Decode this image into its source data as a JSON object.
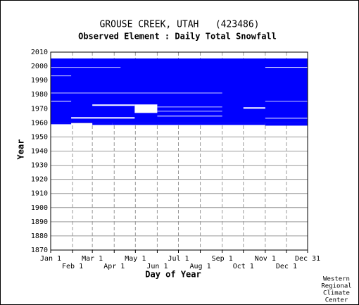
{
  "chart_data": {
    "type": "availability",
    "title": "GROUSE CREEK, UTAH   (423486)",
    "subtitle": "Observed Element : Daily Total Snowfall",
    "x_label": "Day of Year",
    "y_label": "Year",
    "credit": [
      "Western",
      "Regional",
      "Climate",
      "Center"
    ],
    "color": "#0000ff",
    "gap_color": "#ffffff",
    "xlim": [
      1,
      365
    ],
    "ylim": [
      1870,
      2010
    ],
    "xticks": [
      {
        "value": 1,
        "label": "Jan 1"
      },
      {
        "value": 32,
        "label": "Feb 1"
      },
      {
        "value": 60,
        "label": "Mar 1"
      },
      {
        "value": 91,
        "label": "Apr 1"
      },
      {
        "value": 121,
        "label": "May 1"
      },
      {
        "value": 152,
        "label": "Jun 1"
      },
      {
        "value": 182,
        "label": "Jul 1"
      },
      {
        "value": 213,
        "label": "Aug 1"
      },
      {
        "value": 244,
        "label": "Sep 1"
      },
      {
        "value": 274,
        "label": "Oct 1"
      },
      {
        "value": 305,
        "label": "Nov 1"
      },
      {
        "value": 335,
        "label": "Dec 1"
      },
      {
        "value": 365,
        "label": "Dec 31"
      }
    ],
    "yticks": [
      1870,
      1880,
      1890,
      1900,
      1910,
      1920,
      1930,
      1940,
      1950,
      1960,
      1970,
      1980,
      1990,
      2000,
      2010
    ],
    "blocks": [
      {
        "x": [
          1,
          365
        ],
        "y": [
          1960,
          2005.5
        ]
      },
      {
        "x": [
          1,
          30
        ],
        "y": [
          1959,
          1960
        ]
      },
      {
        "x": [
          30,
          60
        ],
        "y": [
          1960,
          1961
        ]
      },
      {
        "x": [
          60,
          88
        ],
        "y": [
          1958.5,
          1960
        ]
      },
      {
        "x": [
          88,
          305
        ],
        "y": [
          1958.5,
          1960
        ]
      },
      {
        "x": [
          305,
          365
        ],
        "y": [
          1958,
          1960
        ]
      }
    ],
    "gaps": [
      {
        "x": [
          1,
          244
        ],
        "y": [
          1980.9,
          1981.3
        ]
      },
      {
        "x": [
          1,
          30
        ],
        "y": [
          1975,
          1975.5
        ]
      },
      {
        "x": [
          60,
          120
        ],
        "y": [
          1972,
          1973
        ]
      },
      {
        "x": [
          120,
          152
        ],
        "y": [
          1967,
          1973
        ]
      },
      {
        "x": [
          152,
          244
        ],
        "y": [
          1971,
          1971.4
        ]
      },
      {
        "x": [
          152,
          244
        ],
        "y": [
          1968,
          1968.4
        ]
      },
      {
        "x": [
          30,
          120
        ],
        "y": [
          1963,
          1964
        ]
      },
      {
        "x": [
          152,
          244
        ],
        "y": [
          1964.5,
          1965
        ]
      },
      {
        "x": [
          274,
          305
        ],
        "y": [
          1970,
          1971
        ]
      },
      {
        "x": [
          305,
          365
        ],
        "y": [
          1975,
          1975.4
        ]
      },
      {
        "x": [
          305,
          365
        ],
        "y": [
          1963,
          1963.5
        ]
      },
      {
        "x": [
          1,
          100
        ],
        "y": [
          1999,
          1999.4
        ]
      },
      {
        "x": [
          305,
          365
        ],
        "y": [
          1999,
          1999.5
        ]
      },
      {
        "x": [
          1,
          30
        ],
        "y": [
          1993,
          1993.4
        ]
      }
    ]
  }
}
